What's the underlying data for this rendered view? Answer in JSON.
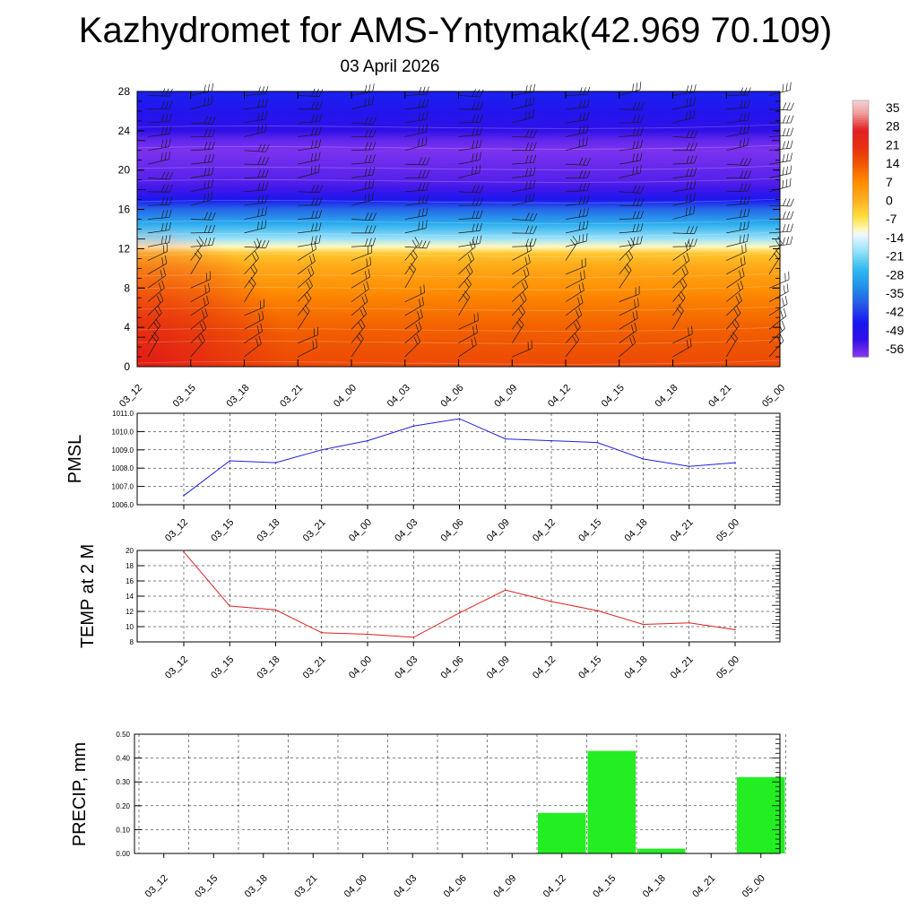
{
  "title": "Kazhydromet for AMS-Yntymak(42.969 70.109)",
  "subtitle": "03 April 2026",
  "colors": {
    "pmsl_line": "#1f1fdd",
    "temp_line": "#dd2222",
    "precip_bar": "#22ee22",
    "wind_barb": "#1a1a1a"
  },
  "chart_data": [
    {
      "type": "heatmap",
      "name": "cross-section",
      "x": [
        "03_12",
        "03_15",
        "03_18",
        "03_21",
        "04_00",
        "04_03",
        "04_06",
        "04_09",
        "04_12",
        "04_15",
        "04_18",
        "04_21",
        "05_00"
      ],
      "yticks": [
        0,
        4,
        8,
        12,
        16,
        20,
        24,
        28
      ],
      "ylim": [
        0,
        28
      ],
      "colorbar_labels": [
        "35",
        "28",
        "21",
        "14",
        "7",
        "0",
        "-7",
        "-14",
        "-21",
        "-28",
        "-35",
        "-42",
        "-49",
        "-56"
      ],
      "colorbar_range": [
        -63,
        40
      ],
      "temperature_profile": [
        {
          "y": 0,
          "v": 17
        },
        {
          "y": 2,
          "v": 15
        },
        {
          "y": 4,
          "v": 13
        },
        {
          "y": 6,
          "v": 10
        },
        {
          "y": 8,
          "v": 6
        },
        {
          "y": 10,
          "v": 2
        },
        {
          "y": 11.5,
          "v": -3
        },
        {
          "y": 12.2,
          "v": -12
        },
        {
          "y": 13,
          "v": -20
        },
        {
          "y": 14.5,
          "v": -30
        },
        {
          "y": 16,
          "v": -40
        },
        {
          "y": 17,
          "v": -50
        },
        {
          "y": 18,
          "v": -57
        },
        {
          "y": 19,
          "v": -59
        },
        {
          "y": 20,
          "v": -60
        },
        {
          "y": 21,
          "v": -61
        },
        {
          "y": 22,
          "v": -62
        },
        {
          "y": 23,
          "v": -60
        },
        {
          "y": 24,
          "v": -56
        },
        {
          "y": 26,
          "v": -52
        },
        {
          "y": 28,
          "v": -48
        }
      ],
      "wind_barbs": true
    },
    {
      "type": "line",
      "name": "pmsl",
      "ylabel": "PMSL",
      "x": [
        "03_12",
        "03_15",
        "03_18",
        "03_21",
        "04_00",
        "04_03",
        "04_06",
        "04_09",
        "04_12",
        "04_15",
        "04_18",
        "04_21",
        "05_00"
      ],
      "values": [
        1006.5,
        1008.4,
        1008.3,
        1009.0,
        1009.5,
        1010.3,
        1010.7,
        1009.6,
        1009.5,
        1009.4,
        1008.5,
        1008.1,
        1008.3
      ],
      "ylim": [
        1006.0,
        1011.0
      ],
      "yticks": [
        "1006.0",
        "1007.0",
        "1008.0",
        "1009.0",
        "1010.0",
        "1011.0"
      ],
      "grid": true
    },
    {
      "type": "line",
      "name": "temp-2m",
      "ylabel": "TEMP at 2 M",
      "x": [
        "03_12",
        "03_15",
        "03_18",
        "03_21",
        "04_00",
        "04_03",
        "04_06",
        "04_09",
        "04_12",
        "04_15",
        "04_18",
        "04_21",
        "05_00"
      ],
      "values": [
        19.8,
        12.7,
        12.2,
        9.2,
        9.0,
        8.6,
        11.8,
        14.8,
        13.3,
        12.1,
        10.3,
        10.5,
        9.6
      ],
      "ylim": [
        8,
        20
      ],
      "yticks": [
        "8",
        "10",
        "12",
        "14",
        "16",
        "18",
        "20"
      ],
      "grid": true
    },
    {
      "type": "bar",
      "name": "precip",
      "ylabel": "PRECIP, mm",
      "categories": [
        "03_12",
        "03_15",
        "03_18",
        "03_21",
        "04_00",
        "04_03",
        "04_06",
        "04_09",
        "04_12",
        "04_15",
        "04_18",
        "04_21",
        "05_00"
      ],
      "values": [
        0,
        0,
        0,
        0,
        0,
        0,
        0,
        0,
        0.17,
        0.43,
        0.02,
        0,
        0.32
      ],
      "ylim": [
        0,
        0.5
      ],
      "yticks": [
        "0.00",
        "0.10",
        "0.20",
        "0.30",
        "0.40",
        "0.50"
      ],
      "grid": true
    }
  ]
}
